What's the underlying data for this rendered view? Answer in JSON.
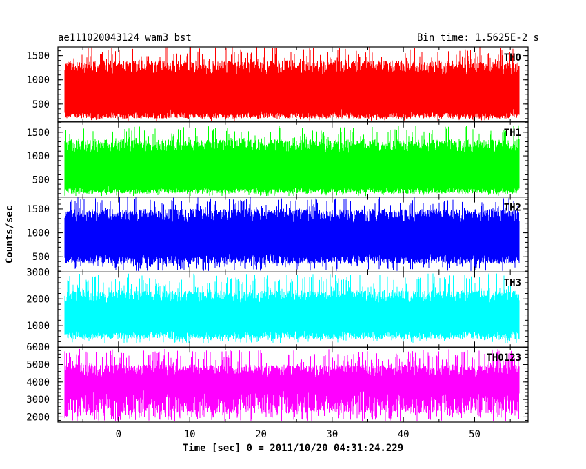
{
  "chart_data": {
    "type": "line",
    "title": "ae111020043124_wam3_bst",
    "subtitle": "Bin time: 1.5625E-2 s",
    "xlabel": "Time [sec] 0 = 2011/10/20 04:31:24.229",
    "ylabel": "Counts/sec",
    "xlim": [
      -8.5,
      57.5
    ],
    "x_ticks": [
      0,
      10,
      20,
      30,
      40,
      50
    ],
    "data_x_range": [
      -7.5,
      56.2
    ],
    "panels": [
      {
        "name": "TH0",
        "color": "#ff0000",
        "ylim": [
          130,
          1680
        ],
        "y_ticks": [
          500,
          1000,
          1500
        ],
        "typical_range": [
          200,
          1400
        ],
        "peak_range": [
          1100,
          1680
        ],
        "trough_range": [
          150,
          500
        ]
      },
      {
        "name": "TH1",
        "color": "#00ff00",
        "ylim": [
          130,
          1720
        ],
        "y_ticks": [
          500,
          1000,
          1500
        ],
        "typical_range": [
          200,
          1350
        ],
        "peak_range": [
          1100,
          1650
        ],
        "trough_range": [
          150,
          450
        ]
      },
      {
        "name": "TH2",
        "color": "#0000ff",
        "ylim": [
          180,
          1750
        ],
        "y_ticks": [
          500,
          1000,
          1500
        ],
        "typical_range": [
          350,
          1500
        ],
        "peak_range": [
          1300,
          1750
        ],
        "trough_range": [
          200,
          500
        ]
      },
      {
        "name": "TH3",
        "color": "#00ffff",
        "ylim": [
          200,
          3000
        ],
        "y_ticks": [
          1000,
          2000,
          3000
        ],
        "typical_range": [
          500,
          2300
        ],
        "peak_range": [
          2200,
          2950
        ],
        "trough_range": [
          350,
          800
        ]
      },
      {
        "name": "TH0123",
        "color": "#ff00ff",
        "ylim": [
          1700,
          6000
        ],
        "y_ticks": [
          2000,
          3000,
          4000,
          5000,
          6000
        ],
        "typical_range": [
          2200,
          5000
        ],
        "peak_range": [
          4800,
          5900
        ],
        "trough_range": [
          1750,
          2400
        ]
      }
    ]
  }
}
